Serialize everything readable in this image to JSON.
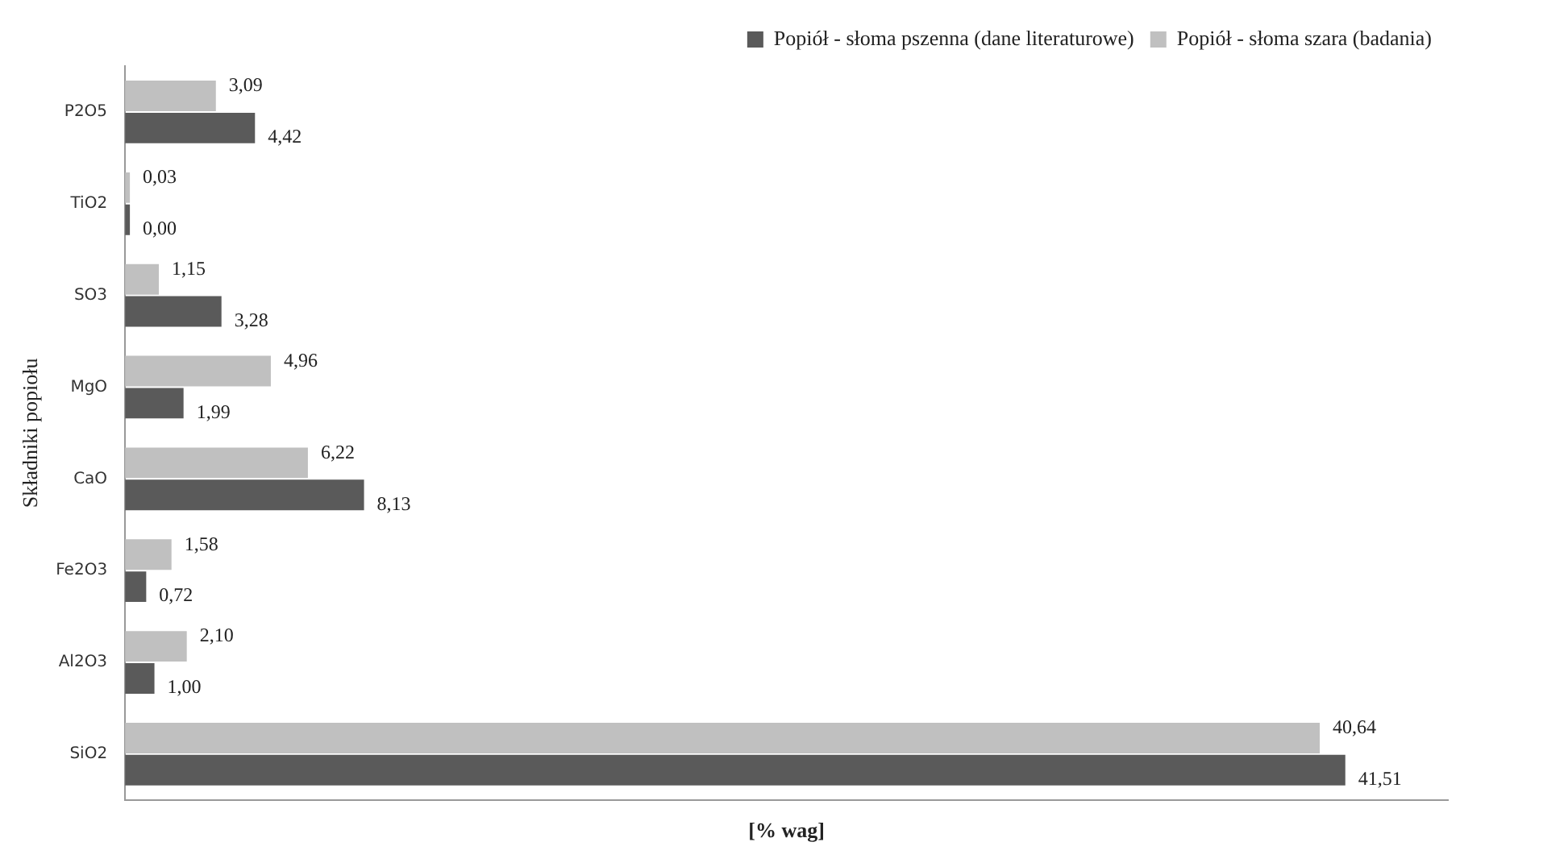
{
  "chart_data": {
    "type": "bar",
    "orientation": "horizontal",
    "xlabel": "[% wag]",
    "ylabel": "Składniki popiołu",
    "categories": [
      "P2O5",
      "TiO2",
      "SO3",
      "MgO",
      "CaO",
      "Fe2O3",
      "Al2O3",
      "SiO2"
    ],
    "legend": "top",
    "grid": false,
    "tick_labels": "y",
    "series": [
      {
        "name": "Popiół - słoma pszenna (dane literaturowe)",
        "color": "#5a5a5a",
        "values": [
          4.42,
          0.0,
          3.28,
          1.99,
          8.13,
          0.72,
          1.0,
          41.51
        ],
        "value_labels": [
          "4,42",
          "0,00",
          "3,28",
          "1,99",
          "8,13",
          "0,72",
          "1,00",
          "41,51"
        ]
      },
      {
        "name": "Popiół - słoma szara (badania)",
        "color": "#c0c0c0",
        "values": [
          3.09,
          0.03,
          1.15,
          4.96,
          6.22,
          1.58,
          2.1,
          40.64
        ],
        "value_labels": [
          "3,09",
          "0,03",
          "1,15",
          "4,96",
          "6,22",
          "1,58",
          "2,10",
          "40,64"
        ]
      }
    ]
  }
}
